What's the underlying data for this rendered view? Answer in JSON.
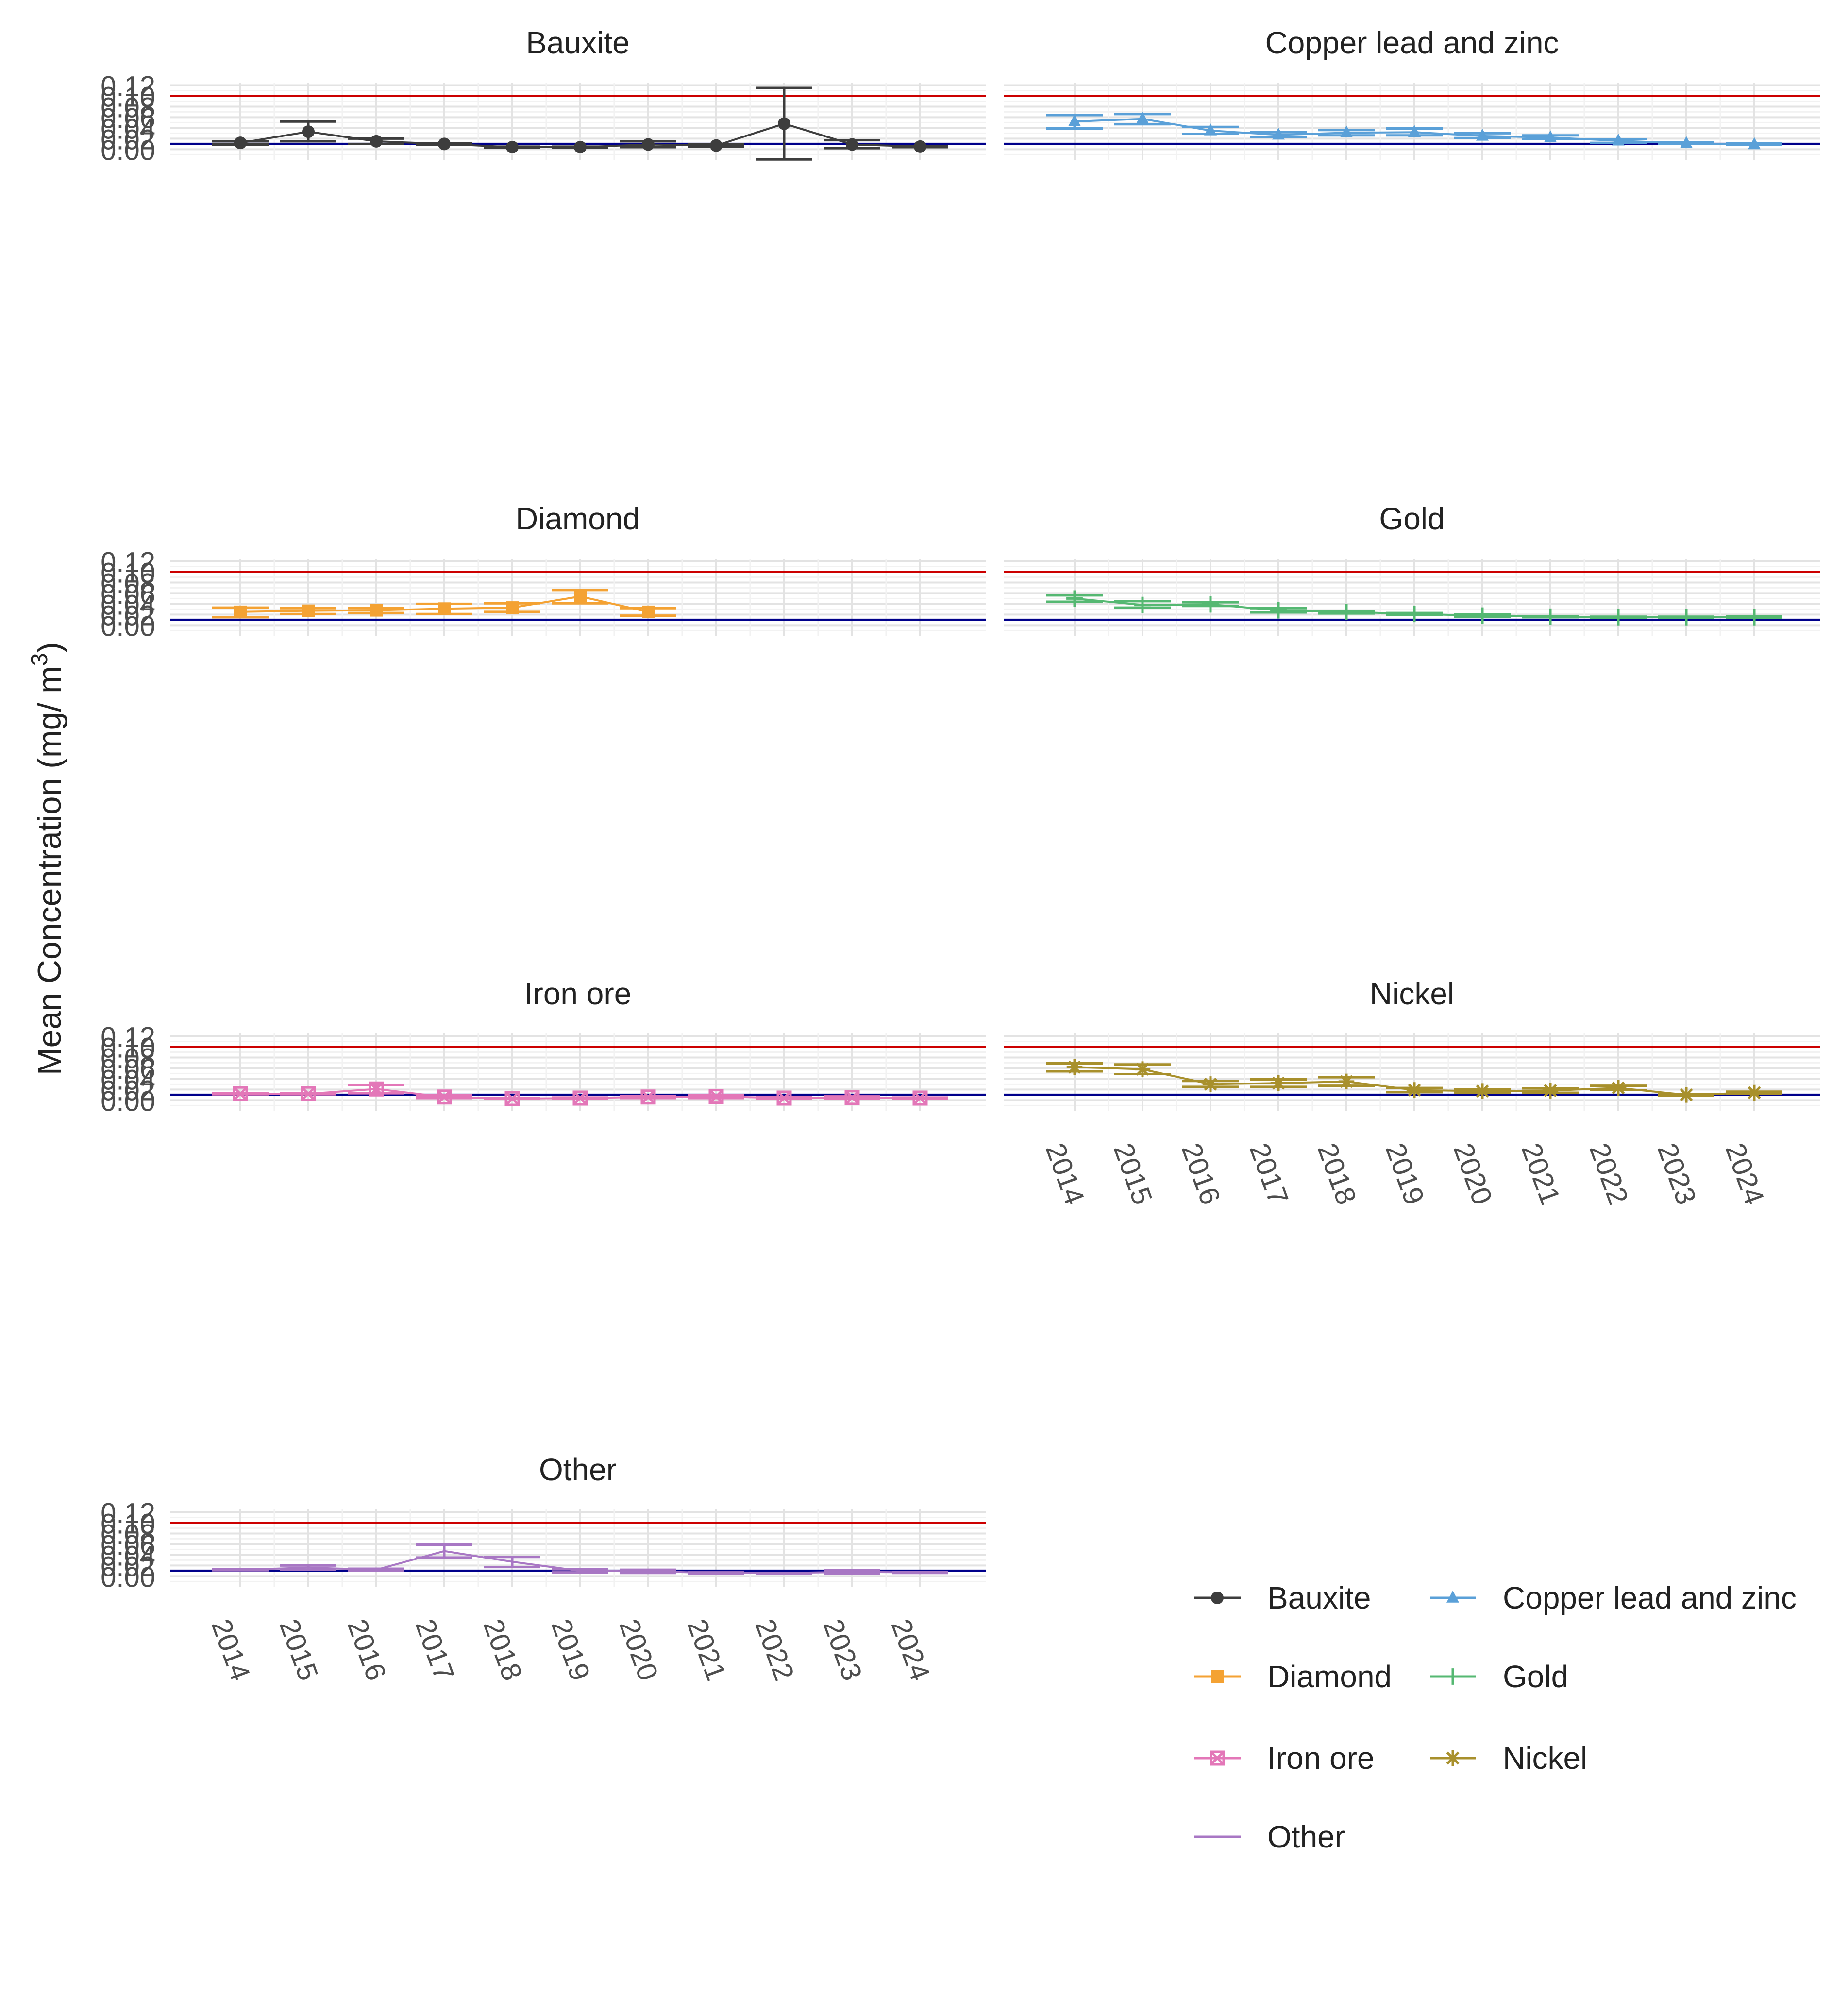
{
  "chart_data": {
    "type": "line",
    "ylabel": "Mean Concentration (mg/ m3)",
    "ylabel_main": "Mean Concentration (mg/ m",
    "ylabel_sup": "3",
    "ylabel_close": ")",
    "xlabel": "",
    "ylim": [
      -0.02,
      0.125
    ],
    "y_ticks": [
      0.0,
      0.02,
      0.04,
      0.06,
      0.08,
      0.1,
      0.12
    ],
    "y_tick_labels": [
      "0.00",
      "0.02",
      "0.04",
      "0.06",
      "0.08",
      "0.10",
      "0.12"
    ],
    "x_categories": [
      "2014",
      "2015",
      "2016",
      "2017",
      "2018",
      "2019",
      "2020",
      "2021",
      "2022",
      "2023",
      "2024"
    ],
    "reference_lines": [
      {
        "value": 0.1,
        "color": "#cc0000"
      },
      {
        "value": 0.01,
        "color": "#00008b"
      }
    ],
    "grid": true,
    "legend_position": "bottom-right",
    "facets": [
      {
        "name": "Bauxite",
        "color": "#3d3d3d",
        "marker": "circle",
        "points": [
          {
            "x": "2014",
            "y": 0.012,
            "lo": 0.009,
            "hi": 0.015
          },
          {
            "x": "2015",
            "y": 0.033,
            "lo": 0.015,
            "hi": 0.052
          },
          {
            "x": "2016",
            "y": 0.015,
            "lo": 0.01,
            "hi": 0.02
          },
          {
            "x": "2017",
            "y": 0.01,
            "lo": 0.009,
            "hi": 0.011
          },
          {
            "x": "2018",
            "y": 0.004,
            "lo": 0.003,
            "hi": 0.005
          },
          {
            "x": "2019",
            "y": 0.004,
            "lo": 0.003,
            "hi": 0.005
          },
          {
            "x": "2020",
            "y": 0.009,
            "lo": 0.004,
            "hi": 0.015
          },
          {
            "x": "2021",
            "y": 0.007,
            "lo": 0.005,
            "hi": 0.009
          },
          {
            "x": "2022",
            "y": 0.048,
            "lo": -0.019,
            "hi": 0.115
          },
          {
            "x": "2023",
            "y": 0.009,
            "lo": 0.002,
            "hi": 0.017
          },
          {
            "x": "2024",
            "y": 0.005,
            "lo": 0.004,
            "hi": 0.006
          }
        ]
      },
      {
        "name": "Copper lead and zinc",
        "color": "#5aa0d8",
        "marker": "triangle",
        "points": [
          {
            "x": "2014",
            "y": 0.052,
            "lo": 0.039,
            "hi": 0.064
          },
          {
            "x": "2015",
            "y": 0.057,
            "lo": 0.047,
            "hi": 0.066
          },
          {
            "x": "2016",
            "y": 0.035,
            "lo": 0.029,
            "hi": 0.042
          },
          {
            "x": "2017",
            "y": 0.027,
            "lo": 0.023,
            "hi": 0.032
          },
          {
            "x": "2018",
            "y": 0.031,
            "lo": 0.026,
            "hi": 0.036
          },
          {
            "x": "2019",
            "y": 0.032,
            "lo": 0.026,
            "hi": 0.039
          },
          {
            "x": "2020",
            "y": 0.025,
            "lo": 0.021,
            "hi": 0.03
          },
          {
            "x": "2021",
            "y": 0.022,
            "lo": 0.019,
            "hi": 0.026
          },
          {
            "x": "2022",
            "y": 0.016,
            "lo": 0.012,
            "hi": 0.019
          },
          {
            "x": "2023",
            "y": 0.011,
            "lo": 0.01,
            "hi": 0.013
          },
          {
            "x": "2024",
            "y": 0.009,
            "lo": 0.008,
            "hi": 0.011
          }
        ]
      },
      {
        "name": "Diamond",
        "color": "#f4a233",
        "marker": "square",
        "points": [
          {
            "x": "2014",
            "y": 0.025,
            "lo": 0.015,
            "hi": 0.033
          },
          {
            "x": "2015",
            "y": 0.027,
            "lo": 0.021,
            "hi": 0.032
          },
          {
            "x": "2016",
            "y": 0.028,
            "lo": 0.023,
            "hi": 0.032
          },
          {
            "x": "2017",
            "y": 0.031,
            "lo": 0.021,
            "hi": 0.04
          },
          {
            "x": "2018",
            "y": 0.033,
            "lo": 0.025,
            "hi": 0.041
          },
          {
            "x": "2019",
            "y": 0.054,
            "lo": 0.041,
            "hi": 0.066
          },
          {
            "x": "2020",
            "y": 0.025,
            "lo": 0.018,
            "hi": 0.032
          }
        ]
      },
      {
        "name": "Gold",
        "color": "#55b872",
        "marker": "plus",
        "points": [
          {
            "x": "2014",
            "y": 0.05,
            "lo": 0.044,
            "hi": 0.056
          },
          {
            "x": "2015",
            "y": 0.038,
            "lo": 0.033,
            "hi": 0.045
          },
          {
            "x": "2016",
            "y": 0.039,
            "lo": 0.036,
            "hi": 0.043
          },
          {
            "x": "2017",
            "y": 0.028,
            "lo": 0.024,
            "hi": 0.032
          },
          {
            "x": "2018",
            "y": 0.025,
            "lo": 0.022,
            "hi": 0.027
          },
          {
            "x": "2019",
            "y": 0.021,
            "lo": 0.019,
            "hi": 0.023
          },
          {
            "x": "2020",
            "y": 0.018,
            "lo": 0.016,
            "hi": 0.02
          },
          {
            "x": "2021",
            "y": 0.016,
            "lo": 0.015,
            "hi": 0.017
          },
          {
            "x": "2022",
            "y": 0.015,
            "lo": 0.014,
            "hi": 0.016
          },
          {
            "x": "2023",
            "y": 0.015,
            "lo": 0.014,
            "hi": 0.016
          },
          {
            "x": "2024",
            "y": 0.015,
            "lo": 0.014,
            "hi": 0.017
          }
        ]
      },
      {
        "name": "Iron ore",
        "color": "#e377b8",
        "marker": "square-cross",
        "points": [
          {
            "x": "2014",
            "y": 0.012,
            "lo": 0.011,
            "hi": 0.013
          },
          {
            "x": "2015",
            "y": 0.012,
            "lo": 0.011,
            "hi": 0.013
          },
          {
            "x": "2016",
            "y": 0.021,
            "lo": 0.013,
            "hi": 0.029
          },
          {
            "x": "2017",
            "y": 0.006,
            "lo": 0.004,
            "hi": 0.009
          },
          {
            "x": "2018",
            "y": 0.003,
            "lo": 0.003,
            "hi": 0.004
          },
          {
            "x": "2019",
            "y": 0.004,
            "lo": 0.003,
            "hi": 0.005
          },
          {
            "x": "2020",
            "y": 0.006,
            "lo": 0.004,
            "hi": 0.008
          },
          {
            "x": "2021",
            "y": 0.007,
            "lo": 0.004,
            "hi": 0.009
          },
          {
            "x": "2022",
            "y": 0.004,
            "lo": 0.003,
            "hi": 0.006
          },
          {
            "x": "2023",
            "y": 0.005,
            "lo": 0.003,
            "hi": 0.007
          },
          {
            "x": "2024",
            "y": 0.004,
            "lo": 0.003,
            "hi": 0.005
          }
        ]
      },
      {
        "name": "Nickel",
        "color": "#a8902c",
        "marker": "asterisk",
        "points": [
          {
            "x": "2014",
            "y": 0.062,
            "lo": 0.054,
            "hi": 0.069
          },
          {
            "x": "2015",
            "y": 0.058,
            "lo": 0.049,
            "hi": 0.067
          },
          {
            "x": "2016",
            "y": 0.03,
            "lo": 0.025,
            "hi": 0.036
          },
          {
            "x": "2017",
            "y": 0.032,
            "lo": 0.025,
            "hi": 0.039
          },
          {
            "x": "2018",
            "y": 0.035,
            "lo": 0.027,
            "hi": 0.043
          },
          {
            "x": "2019",
            "y": 0.019,
            "lo": 0.015,
            "hi": 0.023
          },
          {
            "x": "2020",
            "y": 0.017,
            "lo": 0.014,
            "hi": 0.02
          },
          {
            "x": "2021",
            "y": 0.018,
            "lo": 0.014,
            "hi": 0.022
          },
          {
            "x": "2022",
            "y": 0.023,
            "lo": 0.019,
            "hi": 0.027
          },
          {
            "x": "2023",
            "y": 0.01,
            "lo": 0.009,
            "hi": 0.011
          },
          {
            "x": "2024",
            "y": 0.014,
            "lo": 0.012,
            "hi": 0.016
          }
        ]
      },
      {
        "name": "Other",
        "color": "#a877c4",
        "marker": "none",
        "points": [
          {
            "x": "2014",
            "y": 0.012,
            "lo": 0.011,
            "hi": 0.013
          },
          {
            "x": "2015",
            "y": 0.016,
            "lo": 0.012,
            "hi": 0.02
          },
          {
            "x": "2016",
            "y": 0.012,
            "lo": 0.01,
            "hi": 0.014
          },
          {
            "x": "2017",
            "y": 0.047,
            "lo": 0.035,
            "hi": 0.059
          },
          {
            "x": "2018",
            "y": 0.027,
            "lo": 0.017,
            "hi": 0.036
          },
          {
            "x": "2019",
            "y": 0.01,
            "lo": 0.007,
            "hi": 0.013
          },
          {
            "x": "2020",
            "y": 0.009,
            "lo": 0.006,
            "hi": 0.012
          },
          {
            "x": "2021",
            "y": 0.006,
            "lo": 0.005,
            "hi": 0.007
          },
          {
            "x": "2022",
            "y": 0.006,
            "lo": 0.005,
            "hi": 0.006
          },
          {
            "x": "2023",
            "y": 0.008,
            "lo": 0.005,
            "hi": 0.011
          },
          {
            "x": "2024",
            "y": 0.007,
            "lo": 0.006,
            "hi": 0.008
          }
        ]
      }
    ],
    "legend": [
      {
        "label": "Bauxite",
        "color": "#3d3d3d",
        "marker": "circle"
      },
      {
        "label": "Copper lead and zinc",
        "color": "#5aa0d8",
        "marker": "triangle"
      },
      {
        "label": "Diamond",
        "color": "#f4a233",
        "marker": "square"
      },
      {
        "label": "Gold",
        "color": "#55b872",
        "marker": "plus"
      },
      {
        "label": "Iron ore",
        "color": "#e377b8",
        "marker": "square-cross"
      },
      {
        "label": "Nickel",
        "color": "#a8902c",
        "marker": "asterisk"
      },
      {
        "label": "Other",
        "color": "#a877c4",
        "marker": "none"
      }
    ]
  }
}
